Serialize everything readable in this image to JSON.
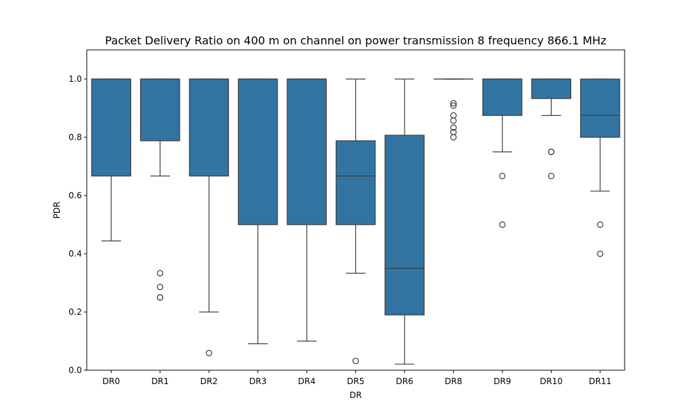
{
  "chart_data": {
    "type": "boxplot",
    "title": "Packet Delivery Ratio on 400 m on channel on power transmission 8 frequency 866.1 MHz",
    "xlabel": "DR",
    "ylabel": "PDR",
    "ylim": [
      0.0,
      1.1
    ],
    "yticks": [
      0.0,
      0.2,
      0.4,
      0.6,
      0.8,
      1.0
    ],
    "ytick_labels": [
      "0.0",
      "0.2",
      "0.4",
      "0.6",
      "0.8",
      "1.0"
    ],
    "box_color": "#3274a1",
    "line_color": "#3d3d3d",
    "categories": [
      "DR0",
      "DR1",
      "DR2",
      "DR3",
      "DR4",
      "DR5",
      "DR6",
      "DR8",
      "DR9",
      "DR10",
      "DR11"
    ],
    "boxes": [
      {
        "label": "DR0",
        "whislo": 0.444,
        "q1": 0.667,
        "med": 1.0,
        "q3": 1.0,
        "whishi": 1.0,
        "fliers": []
      },
      {
        "label": "DR1",
        "whislo": 0.667,
        "q1": 0.788,
        "med": 1.0,
        "q3": 1.0,
        "whishi": 1.0,
        "fliers": [
          0.333,
          0.286,
          0.25,
          0.25
        ]
      },
      {
        "label": "DR2",
        "whislo": 0.2,
        "q1": 0.667,
        "med": 1.0,
        "q3": 1.0,
        "whishi": 1.0,
        "fliers": [
          0.059
        ]
      },
      {
        "label": "DR3",
        "whislo": 0.091,
        "q1": 0.5,
        "med": 1.0,
        "q3": 1.0,
        "whishi": 1.0,
        "fliers": []
      },
      {
        "label": "DR4",
        "whislo": 0.1,
        "q1": 0.5,
        "med": 1.0,
        "q3": 1.0,
        "whishi": 1.0,
        "fliers": []
      },
      {
        "label": "DR5",
        "whislo": 0.333,
        "q1": 0.5,
        "med": 0.667,
        "q3": 0.788,
        "whishi": 1.0,
        "fliers": [
          0.032
        ]
      },
      {
        "label": "DR6",
        "whislo": 0.021,
        "q1": 0.19,
        "med": 0.35,
        "q3": 0.807,
        "whishi": 1.0,
        "fliers": []
      },
      {
        "label": "DR8",
        "whislo": 1.0,
        "q1": 1.0,
        "med": 1.0,
        "q3": 1.0,
        "whishi": 1.0,
        "fliers": [
          0.917,
          0.909,
          0.875,
          0.857,
          0.833,
          0.818,
          0.8
        ]
      },
      {
        "label": "DR9",
        "whislo": 0.75,
        "q1": 0.875,
        "med": 1.0,
        "q3": 1.0,
        "whishi": 1.0,
        "fliers": [
          0.667,
          0.5
        ]
      },
      {
        "label": "DR10",
        "whislo": 0.875,
        "q1": 0.933,
        "med": 1.0,
        "q3": 1.0,
        "whishi": 1.0,
        "fliers": [
          0.75,
          0.75,
          0.667
        ]
      },
      {
        "label": "DR11",
        "whislo": 0.615,
        "q1": 0.8,
        "med": 0.875,
        "q3": 1.0,
        "whishi": 1.0,
        "fliers": [
          0.5,
          0.4
        ]
      }
    ]
  }
}
